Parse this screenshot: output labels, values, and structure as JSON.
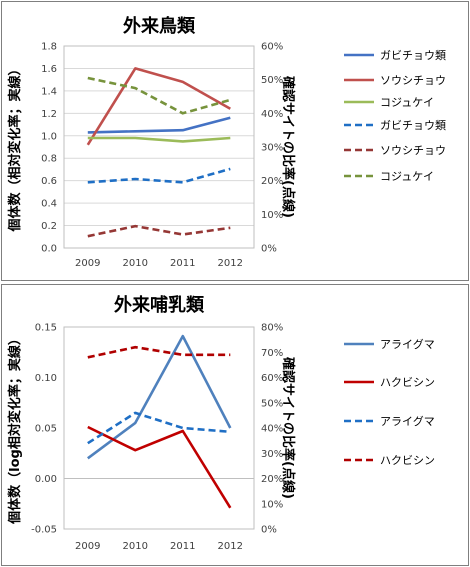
{
  "chart_data": [
    {
      "type": "line",
      "title": "外来鳥類",
      "ylabel": "個体数（相対変化率；実線）",
      "y2label": "確認サイトの比率(点線)",
      "x": [
        "2009",
        "2010",
        "2011",
        "2012"
      ],
      "ylim": [
        0,
        1.8
      ],
      "y_ticks": [
        "0.0",
        "0.2",
        "0.4",
        "0.6",
        "0.8",
        "1.0",
        "1.2",
        "1.4",
        "1.6",
        "1.8"
      ],
      "y2lim": [
        0,
        60
      ],
      "y2_ticks": [
        "0%",
        "10%",
        "20%",
        "30%",
        "40%",
        "50%",
        "60%"
      ],
      "grid": true,
      "legend": "right",
      "series": [
        {
          "name": "ガビチョウ類",
          "axis": "left",
          "style": "solid",
          "color": "#4472c4",
          "values": [
            1.03,
            1.04,
            1.05,
            1.16
          ]
        },
        {
          "name": "ソウシチョウ",
          "axis": "left",
          "style": "solid",
          "color": "#c0504d",
          "values": [
            0.92,
            1.6,
            1.48,
            1.24
          ]
        },
        {
          "name": "コジュケイ",
          "axis": "left",
          "style": "solid",
          "color": "#9bbb59",
          "values": [
            0.98,
            0.98,
            0.95,
            0.98
          ]
        },
        {
          "name": "ガビチョウ類",
          "axis": "right",
          "style": "dashed",
          "color": "#1f6fc5",
          "values": [
            19.5,
            20.5,
            19.5,
            23.5
          ]
        },
        {
          "name": "ソウシチョウ",
          "axis": "right",
          "style": "dashed",
          "color": "#953735",
          "values": [
            3.5,
            6.5,
            4.0,
            6.0
          ]
        },
        {
          "name": "コジュケイ",
          "axis": "right",
          "style": "dashed",
          "color": "#77933c",
          "values": [
            50.5,
            47.5,
            40.0,
            44.0
          ]
        }
      ]
    },
    {
      "type": "line",
      "title": "外来哺乳類",
      "ylabel": "個体数（log相対変化率；実線）",
      "y2label": "確認サイトの比率(点線)",
      "x": [
        "2009",
        "2010",
        "2011",
        "2012"
      ],
      "ylim": [
        -0.05,
        0.15
      ],
      "y_ticks": [
        "-0.05",
        "0.00",
        "0.05",
        "0.10",
        "0.15"
      ],
      "y2lim": [
        0,
        80
      ],
      "y2_ticks": [
        "0%",
        "10%",
        "20%",
        "30%",
        "40%",
        "50%",
        "60%",
        "70%",
        "80%"
      ],
      "grid": false,
      "legend": "right",
      "series": [
        {
          "name": "アライグマ",
          "axis": "left",
          "style": "solid",
          "color": "#4f81bd",
          "values": [
            0.02,
            0.055,
            0.141,
            0.05
          ]
        },
        {
          "name": "ハクビシン",
          "axis": "left",
          "style": "solid",
          "color": "#c00000",
          "values": [
            0.051,
            0.028,
            0.047,
            -0.029
          ]
        },
        {
          "name": "アライグマ",
          "axis": "right",
          "style": "dashed",
          "color": "#1f6fc5",
          "values": [
            34.0,
            46.0,
            40.0,
            38.5
          ]
        },
        {
          "name": "ハクビシン",
          "axis": "right",
          "style": "dashed",
          "color": "#b00000",
          "values": [
            68.0,
            72.0,
            69.0,
            69.0
          ]
        }
      ]
    }
  ]
}
